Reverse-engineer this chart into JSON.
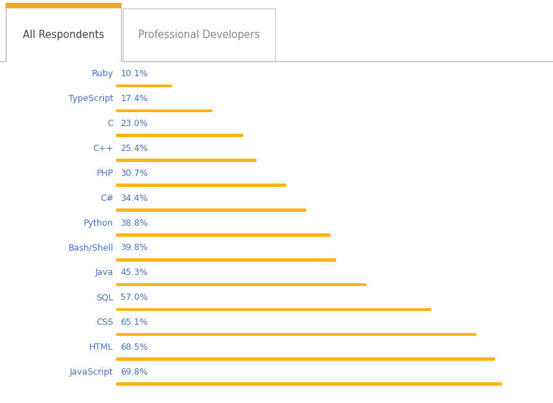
{
  "categories": [
    "JavaScript",
    "HTML",
    "CSS",
    "SQL",
    "Java",
    "Bash/Shell",
    "Python",
    "C#",
    "PHP",
    "C++",
    "C",
    "TypeScript",
    "Ruby"
  ],
  "values": [
    69.8,
    68.5,
    65.1,
    57.0,
    45.3,
    39.8,
    38.8,
    34.4,
    30.7,
    25.4,
    23.0,
    17.4,
    10.1
  ],
  "bar_color": "#FDB515",
  "label_color": "#4472C4",
  "value_color": "#4472C4",
  "background_color": "#FFFFFF",
  "tab1_text": "All Respondents",
  "tab2_text": "Professional Developers",
  "tab_active_color": "#F5A623",
  "tab_border_color": "#CCCCCC",
  "xlim": [
    0,
    76
  ],
  "bar_height": 0.13,
  "figsize": [
    8.0,
    5.82
  ],
  "dpi": 100,
  "label_fontsize": 9.0,
  "value_fontsize": 9.0,
  "tab_fontsize": 10.5
}
